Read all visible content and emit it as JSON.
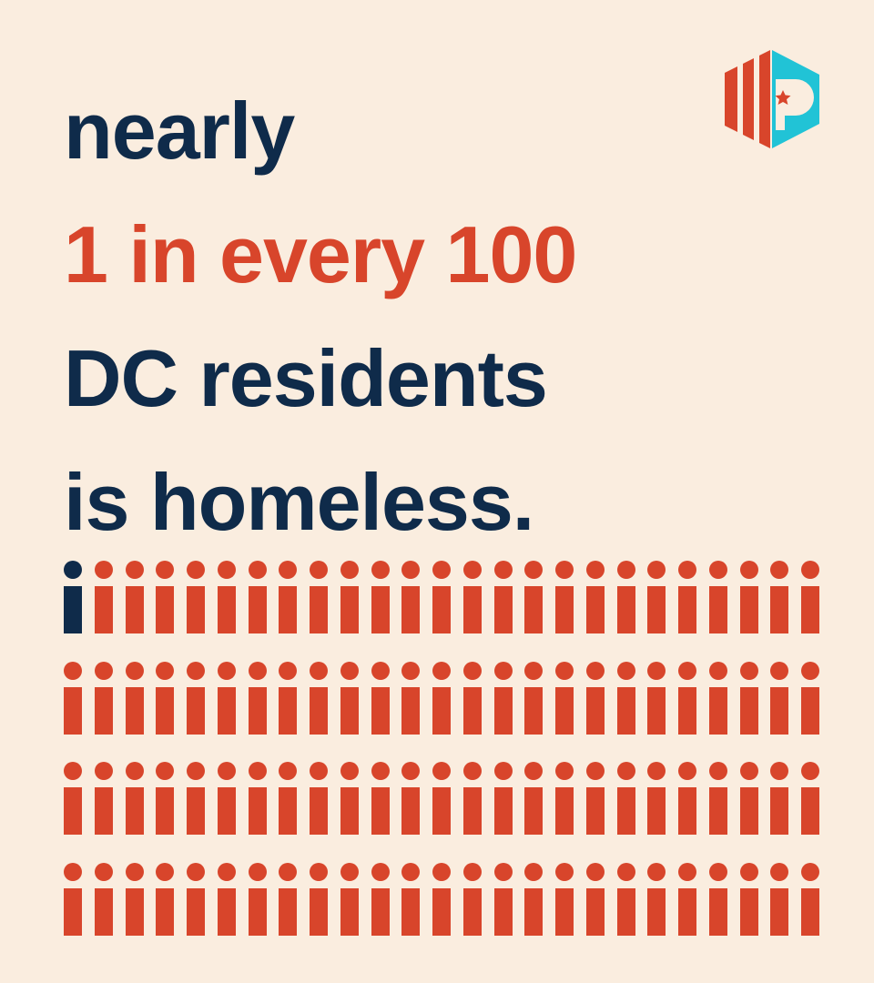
{
  "headline": {
    "line1": "nearly",
    "line2": "1 in every 100",
    "line3": "DC residents",
    "line4": "is homeless."
  },
  "logo": {
    "icon": "dc-flag-hexagon-logo-icon"
  },
  "colors": {
    "background": "#FAEDDF",
    "navy": "#0F2B4A",
    "red": "#D8452B",
    "teal": "#21C3D6"
  },
  "chart_data": {
    "type": "pictogram",
    "total": 100,
    "highlighted": 1,
    "rows": 4,
    "columns": 25,
    "icon": "person-i-glyph"
  }
}
